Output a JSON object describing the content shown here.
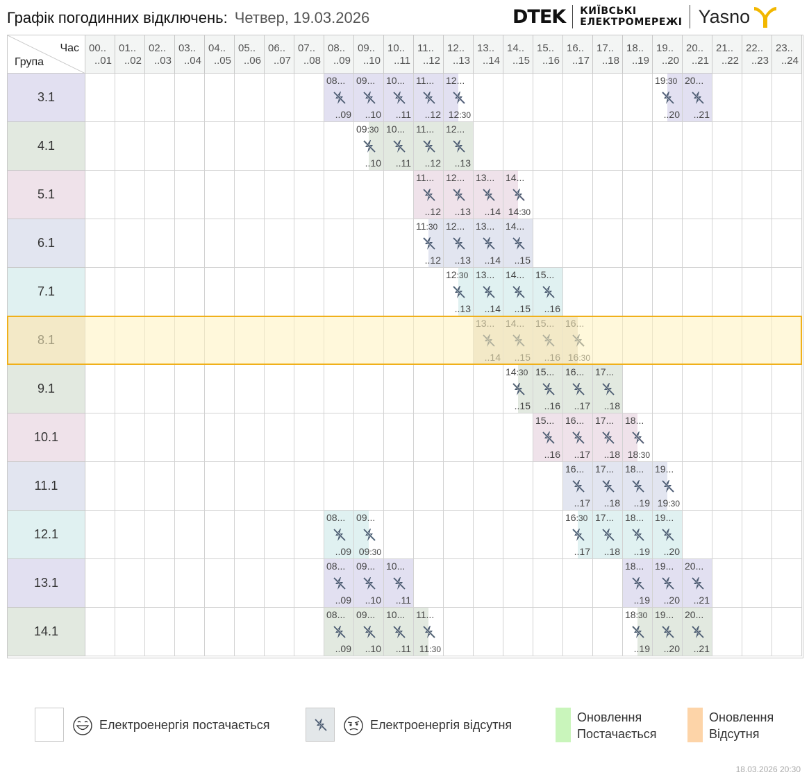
{
  "header": {
    "title": "Графік погодинних відключень:",
    "date": "Четвер, 19.03.2026",
    "brand_dtek": "DTEK",
    "brand_kyiv_line1": "КИЇВСЬКІ",
    "brand_kyiv_line2": "ЕЛЕКТРОМЕРЕЖІ",
    "brand_yasno": "Yasno"
  },
  "corner": {
    "hour_label": "Час",
    "group_label": "Група"
  },
  "hours": [
    {
      "from": "00..",
      "to": "..01"
    },
    {
      "from": "01..",
      "to": "..02"
    },
    {
      "from": "02..",
      "to": "..03"
    },
    {
      "from": "03..",
      "to": "..04"
    },
    {
      "from": "04..",
      "to": "..05"
    },
    {
      "from": "05..",
      "to": "..06"
    },
    {
      "from": "06..",
      "to": "..07"
    },
    {
      "from": "07..",
      "to": "..08"
    },
    {
      "from": "08..",
      "to": "..09"
    },
    {
      "from": "09..",
      "to": "..10"
    },
    {
      "from": "10..",
      "to": "..11"
    },
    {
      "from": "11..",
      "to": "..12"
    },
    {
      "from": "12..",
      "to": "..13"
    },
    {
      "from": "13..",
      "to": "..14"
    },
    {
      "from": "14..",
      "to": "..15"
    },
    {
      "from": "15..",
      "to": "..16"
    },
    {
      "from": "16..",
      "to": "..17"
    },
    {
      "from": "17..",
      "to": "..18"
    },
    {
      "from": "18..",
      "to": "..19"
    },
    {
      "from": "19..",
      "to": "..20"
    },
    {
      "from": "20..",
      "to": "..21"
    },
    {
      "from": "21..",
      "to": "..22"
    },
    {
      "from": "22..",
      "to": "..23"
    },
    {
      "from": "23..",
      "to": "..24"
    }
  ],
  "highlighted_group": "8.1",
  "groups": [
    {
      "name": "3.1",
      "color": "#e2e0f1",
      "outages": [
        {
          "h": 8,
          "kind": "full",
          "top": "08...",
          "bottom": "..09"
        },
        {
          "h": 9,
          "kind": "full",
          "top": "09...",
          "bottom": "..10"
        },
        {
          "h": 10,
          "kind": "full",
          "top": "10...",
          "bottom": "..11"
        },
        {
          "h": 11,
          "kind": "full",
          "top": "11...",
          "bottom": "..12"
        },
        {
          "h": 12,
          "kind": "first",
          "top": "12...",
          "bottom": "12:30"
        },
        {
          "h": 19,
          "kind": "second",
          "top": "19:30",
          "bottom": "..20"
        },
        {
          "h": 20,
          "kind": "full",
          "top": "20...",
          "bottom": "..21"
        }
      ]
    },
    {
      "name": "4.1",
      "color": "#e2e9e0",
      "outages": [
        {
          "h": 9,
          "kind": "second",
          "top": "09:30",
          "bottom": "..10"
        },
        {
          "h": 10,
          "kind": "full",
          "top": "10...",
          "bottom": "..11"
        },
        {
          "h": 11,
          "kind": "full",
          "top": "11...",
          "bottom": "..12"
        },
        {
          "h": 12,
          "kind": "full",
          "top": "12...",
          "bottom": "..13"
        }
      ]
    },
    {
      "name": "5.1",
      "color": "#efe2ea",
      "outages": [
        {
          "h": 11,
          "kind": "full",
          "top": "11...",
          "bottom": "..12"
        },
        {
          "h": 12,
          "kind": "full",
          "top": "12...",
          "bottom": "..13"
        },
        {
          "h": 13,
          "kind": "full",
          "top": "13...",
          "bottom": "..14"
        },
        {
          "h": 14,
          "kind": "first",
          "top": "14...",
          "bottom": "14:30"
        }
      ]
    },
    {
      "name": "6.1",
      "color": "#e2e5f0",
      "outages": [
        {
          "h": 11,
          "kind": "second",
          "top": "11:30",
          "bottom": "..12"
        },
        {
          "h": 12,
          "kind": "full",
          "top": "12...",
          "bottom": "..13"
        },
        {
          "h": 13,
          "kind": "full",
          "top": "13...",
          "bottom": "..14"
        },
        {
          "h": 14,
          "kind": "full",
          "top": "14...",
          "bottom": "..15"
        }
      ]
    },
    {
      "name": "7.1",
      "color": "#e0f1f1",
      "outages": [
        {
          "h": 12,
          "kind": "second",
          "top": "12:30",
          "bottom": "..13"
        },
        {
          "h": 13,
          "kind": "full",
          "top": "13...",
          "bottom": "..14"
        },
        {
          "h": 14,
          "kind": "full",
          "top": "14...",
          "bottom": "..15"
        },
        {
          "h": 15,
          "kind": "full",
          "top": "15...",
          "bottom": "..16"
        }
      ]
    },
    {
      "name": "8.1",
      "color": "#e4ddd2",
      "outages": [
        {
          "h": 13,
          "kind": "full",
          "top": "13...",
          "bottom": "..14"
        },
        {
          "h": 14,
          "kind": "full",
          "top": "14...",
          "bottom": "..15"
        },
        {
          "h": 15,
          "kind": "full",
          "top": "15...",
          "bottom": "..16"
        },
        {
          "h": 16,
          "kind": "first",
          "top": "16...",
          "bottom": "16:30"
        }
      ]
    },
    {
      "name": "9.1",
      "color": "#e2e9e0",
      "outages": [
        {
          "h": 14,
          "kind": "second",
          "top": "14:30",
          "bottom": "..15"
        },
        {
          "h": 15,
          "kind": "full",
          "top": "15...",
          "bottom": "..16"
        },
        {
          "h": 16,
          "kind": "full",
          "top": "16...",
          "bottom": "..17"
        },
        {
          "h": 17,
          "kind": "full",
          "top": "17...",
          "bottom": "..18"
        }
      ]
    },
    {
      "name": "10.1",
      "color": "#efe2ea",
      "outages": [
        {
          "h": 15,
          "kind": "full",
          "top": "15...",
          "bottom": "..16"
        },
        {
          "h": 16,
          "kind": "full",
          "top": "16...",
          "bottom": "..17"
        },
        {
          "h": 17,
          "kind": "full",
          "top": "17...",
          "bottom": "..18"
        },
        {
          "h": 18,
          "kind": "first",
          "top": "18...",
          "bottom": "18:30"
        }
      ]
    },
    {
      "name": "11.1",
      "color": "#e2e5f0",
      "outages": [
        {
          "h": 16,
          "kind": "full",
          "top": "16...",
          "bottom": "..17"
        },
        {
          "h": 17,
          "kind": "full",
          "top": "17...",
          "bottom": "..18"
        },
        {
          "h": 18,
          "kind": "full",
          "top": "18...",
          "bottom": "..19"
        },
        {
          "h": 19,
          "kind": "first",
          "top": "19...",
          "bottom": "19:30"
        }
      ]
    },
    {
      "name": "12.1",
      "color": "#e0f1f1",
      "outages": [
        {
          "h": 8,
          "kind": "full",
          "top": "08...",
          "bottom": "..09"
        },
        {
          "h": 9,
          "kind": "first",
          "top": "09...",
          "bottom": "09:30"
        },
        {
          "h": 16,
          "kind": "second",
          "top": "16:30",
          "bottom": "..17"
        },
        {
          "h": 17,
          "kind": "full",
          "top": "17...",
          "bottom": "..18"
        },
        {
          "h": 18,
          "kind": "full",
          "top": "18...",
          "bottom": "..19"
        },
        {
          "h": 19,
          "kind": "full",
          "top": "19...",
          "bottom": "..20"
        }
      ]
    },
    {
      "name": "13.1",
      "color": "#e2e0f1",
      "outages": [
        {
          "h": 8,
          "kind": "full",
          "top": "08...",
          "bottom": "..09"
        },
        {
          "h": 9,
          "kind": "full",
          "top": "09...",
          "bottom": "..10"
        },
        {
          "h": 10,
          "kind": "full",
          "top": "10...",
          "bottom": "..11"
        },
        {
          "h": 18,
          "kind": "full",
          "top": "18...",
          "bottom": "..19"
        },
        {
          "h": 19,
          "kind": "full",
          "top": "19...",
          "bottom": "..20"
        },
        {
          "h": 20,
          "kind": "full",
          "top": "20...",
          "bottom": "..21"
        }
      ]
    },
    {
      "name": "14.1",
      "color": "#e2e9e0",
      "outages": [
        {
          "h": 8,
          "kind": "full",
          "top": "08...",
          "bottom": "..09"
        },
        {
          "h": 9,
          "kind": "full",
          "top": "09...",
          "bottom": "..10"
        },
        {
          "h": 10,
          "kind": "full",
          "top": "10...",
          "bottom": "..11"
        },
        {
          "h": 11,
          "kind": "first",
          "top": "11...",
          "bottom": "11:30"
        },
        {
          "h": 18,
          "kind": "second",
          "top": "18:30",
          "bottom": "..19"
        },
        {
          "h": 19,
          "kind": "full",
          "top": "19...",
          "bottom": "..20"
        },
        {
          "h": 20,
          "kind": "full",
          "top": "20...",
          "bottom": "..21"
        }
      ]
    }
  ],
  "legend": {
    "power_on": "Електроенергія постачається",
    "power_off": "Електроенергія відсутня",
    "update_on_line1": "Оновлення",
    "update_on_line2": "Постачається",
    "update_off_line1": "Оновлення",
    "update_off_line2": "Відсутня",
    "update_on_color": "#c9f5bb",
    "update_off_color": "#fdd4a8",
    "power_off_color": "#e3e7e9",
    "highlight_color": "#f0b01a"
  },
  "footer": {
    "updated": "18.03.2026  20:30"
  }
}
